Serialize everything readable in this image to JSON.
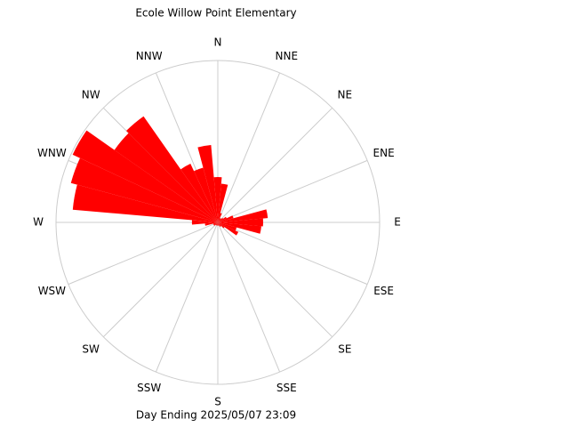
{
  "chart_data": {
    "type": "windrose",
    "title": "Ecole Willow Point Elementary",
    "subtitle": "Day Ending 2025/05/07 23:09",
    "direction_labels": [
      "N",
      "NNE",
      "NE",
      "ENE",
      "E",
      "ESE",
      "SE",
      "SSE",
      "S",
      "SSW",
      "SW",
      "WSW",
      "W",
      "WNW",
      "NW",
      "NNW"
    ],
    "x": [
      0,
      10,
      20,
      30,
      40,
      50,
      60,
      70,
      80,
      90,
      100,
      110,
      120,
      130,
      140,
      150,
      160,
      170,
      180,
      190,
      200,
      210,
      220,
      230,
      240,
      250,
      260,
      270,
      280,
      290,
      300,
      310,
      320,
      330,
      340,
      350
    ],
    "xlim": [
      0,
      360
    ],
    "values": [
      28,
      24,
      6,
      3,
      3,
      4,
      6,
      10,
      31,
      28,
      27,
      12,
      14,
      5,
      3,
      3,
      2,
      2,
      2,
      2,
      2,
      2,
      2,
      3,
      3,
      3,
      8,
      16,
      90,
      94,
      99,
      78,
      80,
      40,
      35,
      48
    ],
    "rlim": [
      0,
      100
    ],
    "color": "#ff0000",
    "grid": true
  }
}
